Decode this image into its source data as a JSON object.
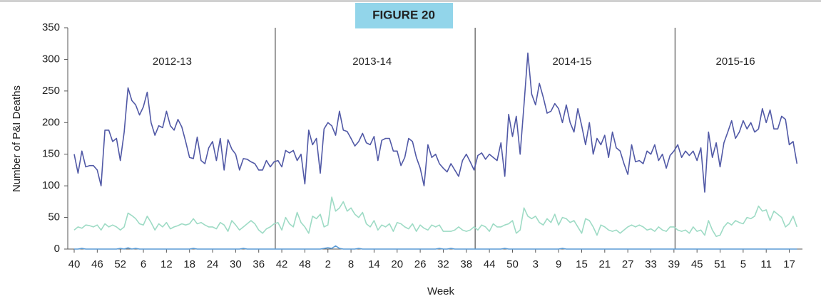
{
  "chart_data": {
    "type": "line",
    "title": "FIGURE 20",
    "y_label": "Number of P&I Deaths",
    "x_label": "Week",
    "ylim": [
      0,
      350
    ],
    "yticks": [
      0,
      50,
      100,
      150,
      200,
      250,
      300,
      350
    ],
    "seasons": [
      {
        "label": "2012-13",
        "start": 0
      },
      {
        "label": "2013-14",
        "start": 52
      },
      {
        "label": "2014-15",
        "start": 104
      },
      {
        "label": "2015-16",
        "start": 156
      }
    ],
    "categories": [
      "40",
      null,
      null,
      null,
      null,
      null,
      "46",
      null,
      null,
      null,
      null,
      null,
      "52",
      null,
      null,
      null,
      null,
      null,
      "6",
      null,
      null,
      null,
      null,
      null,
      "12",
      null,
      null,
      null,
      null,
      null,
      "18",
      null,
      null,
      null,
      null,
      null,
      "24",
      null,
      null,
      null,
      null,
      null,
      "30",
      null,
      null,
      null,
      null,
      null,
      "36",
      null,
      null,
      null,
      null,
      null,
      "42",
      null,
      null,
      null,
      null,
      null,
      "48",
      null,
      null,
      null,
      null,
      null,
      "2",
      null,
      null,
      null,
      null,
      null,
      "8",
      null,
      null,
      null,
      null,
      null,
      "14",
      null,
      null,
      null,
      null,
      null,
      "20",
      null,
      null,
      null,
      null,
      null,
      "26",
      null,
      null,
      null,
      null,
      null,
      "32",
      null,
      null,
      null,
      null,
      null,
      "38",
      null,
      null,
      null,
      null,
      null,
      "44",
      null,
      null,
      null,
      null,
      null,
      "50",
      null,
      null,
      null,
      null,
      null,
      "3",
      null,
      null,
      null,
      null,
      null,
      "9",
      null,
      null,
      null,
      null,
      null,
      "15",
      null,
      null,
      null,
      null,
      null,
      "21",
      null,
      null,
      null,
      null,
      null,
      "27",
      null,
      null,
      null,
      null,
      null,
      "33",
      null,
      null,
      null,
      null,
      null,
      "39",
      null,
      null,
      null,
      null,
      null,
      "45",
      null,
      null,
      null,
      null,
      null,
      "51",
      null,
      null,
      null,
      null,
      null,
      "5",
      null,
      null,
      null,
      null,
      null,
      "11",
      null,
      null,
      null,
      null,
      null,
      "17",
      null,
      null
    ],
    "series": [
      {
        "color": "#5159a6",
        "values": [
          150,
          120,
          155,
          130,
          132,
          132,
          125,
          100,
          188,
          188,
          170,
          175,
          140,
          185,
          255,
          235,
          228,
          212,
          225,
          248,
          200,
          180,
          195,
          192,
          218,
          195,
          188,
          205,
          193,
          170,
          145,
          143,
          177,
          140,
          135,
          160,
          170,
          140,
          175,
          125,
          173,
          158,
          150,
          125,
          143,
          142,
          138,
          135,
          125,
          125,
          140,
          130,
          138,
          140,
          130,
          156,
          152,
          156,
          140,
          150,
          103,
          188,
          165,
          175,
          120,
          190,
          200,
          195,
          180,
          218,
          188,
          186,
          175,
          163,
          170,
          183,
          168,
          165,
          178,
          140,
          172,
          175,
          175,
          155,
          155,
          132,
          145,
          175,
          170,
          145,
          128,
          100,
          165,
          145,
          150,
          135,
          128,
          122,
          135,
          125,
          115,
          140,
          150,
          138,
          125,
          148,
          152,
          142,
          150,
          145,
          140,
          168,
          115,
          213,
          178,
          210,
          150,
          228,
          310,
          245,
          228,
          262,
          240,
          215,
          218,
          230,
          222,
          200,
          228,
          200,
          185,
          222,
          195,
          165,
          200,
          150,
          175,
          165,
          180,
          145,
          185,
          160,
          155,
          135,
          118,
          165,
          138,
          140,
          135,
          155,
          150,
          165,
          140,
          150,
          128,
          148,
          155,
          165,
          145,
          155,
          148,
          155,
          140,
          160,
          90,
          185,
          145,
          168,
          130,
          168,
          185,
          203,
          175,
          185,
          203,
          190,
          200,
          185,
          190,
          222,
          200,
          220,
          190,
          190,
          210,
          205,
          165,
          170,
          135
        ]
      },
      {
        "color": "#9edbc5",
        "values": [
          30,
          35,
          33,
          38,
          37,
          35,
          38,
          30,
          40,
          35,
          38,
          35,
          30,
          35,
          57,
          53,
          48,
          40,
          38,
          52,
          42,
          30,
          40,
          35,
          42,
          32,
          35,
          37,
          40,
          38,
          40,
          48,
          40,
          42,
          38,
          35,
          35,
          32,
          42,
          38,
          28,
          45,
          38,
          30,
          35,
          40,
          45,
          40,
          30,
          25,
          32,
          35,
          40,
          42,
          30,
          50,
          40,
          35,
          58,
          42,
          35,
          25,
          52,
          48,
          55,
          35,
          38,
          82,
          60,
          65,
          75,
          60,
          65,
          55,
          50,
          58,
          40,
          35,
          45,
          30,
          38,
          35,
          40,
          28,
          42,
          40,
          35,
          32,
          40,
          28,
          38,
          33,
          30,
          38,
          35,
          38,
          28,
          28,
          28,
          30,
          35,
          30,
          28,
          30,
          35,
          30,
          38,
          35,
          28,
          40,
          35,
          35,
          38,
          40,
          45,
          25,
          30,
          65,
          52,
          48,
          52,
          42,
          38,
          48,
          42,
          55,
          38,
          50,
          48,
          42,
          45,
          35,
          25,
          48,
          45,
          35,
          22,
          38,
          35,
          30,
          28,
          30,
          25,
          30,
          35,
          38,
          35,
          38,
          35,
          30,
          32,
          28,
          35,
          30,
          28,
          35,
          35,
          30,
          28,
          30,
          25,
          35,
          28,
          30,
          22,
          45,
          30,
          20,
          22,
          35,
          42,
          38,
          45,
          42,
          40,
          50,
          48,
          52,
          68,
          60,
          62,
          45,
          60,
          55,
          50,
          35,
          40,
          52,
          35
        ]
      },
      {
        "color": "#5b9bd5",
        "values": [
          0,
          0,
          1,
          0,
          0,
          0,
          0,
          0,
          0,
          0,
          0,
          0,
          1,
          0,
          2,
          0,
          1,
          0,
          0,
          0,
          0,
          0,
          0,
          0,
          0,
          0,
          0,
          0,
          0,
          0,
          0,
          1,
          0,
          0,
          0,
          0,
          0,
          0,
          0,
          0,
          0,
          0,
          0,
          0,
          1,
          0,
          0,
          0,
          0,
          0,
          0,
          0,
          0,
          0,
          0,
          0,
          0,
          0,
          0,
          0,
          0,
          0,
          0,
          0,
          0,
          1,
          2,
          1,
          5,
          1,
          0,
          0,
          0,
          0,
          1,
          0,
          0,
          0,
          0,
          0,
          0,
          0,
          0,
          0,
          0,
          0,
          0,
          0,
          0,
          0,
          0,
          0,
          0,
          0,
          0,
          1,
          0,
          0,
          1,
          0,
          0,
          0,
          0,
          0,
          0,
          0,
          0,
          0,
          0,
          0,
          0,
          0,
          1,
          0,
          0,
          0,
          0,
          0,
          0,
          0,
          0,
          0,
          0,
          0,
          0,
          0,
          0,
          1,
          0,
          0,
          0,
          0,
          0,
          0,
          0,
          0,
          0,
          0,
          0,
          0,
          0,
          0,
          0,
          0,
          0,
          0,
          0,
          0,
          0,
          0,
          0,
          0,
          0,
          0,
          0,
          0,
          0,
          0,
          0,
          0,
          0,
          0,
          0,
          0,
          0,
          0,
          0,
          0,
          0,
          0,
          0,
          0,
          0,
          0,
          0,
          0,
          0,
          0,
          0,
          0,
          0,
          0,
          0,
          0,
          0,
          0,
          0,
          0,
          0
        ]
      }
    ]
  }
}
